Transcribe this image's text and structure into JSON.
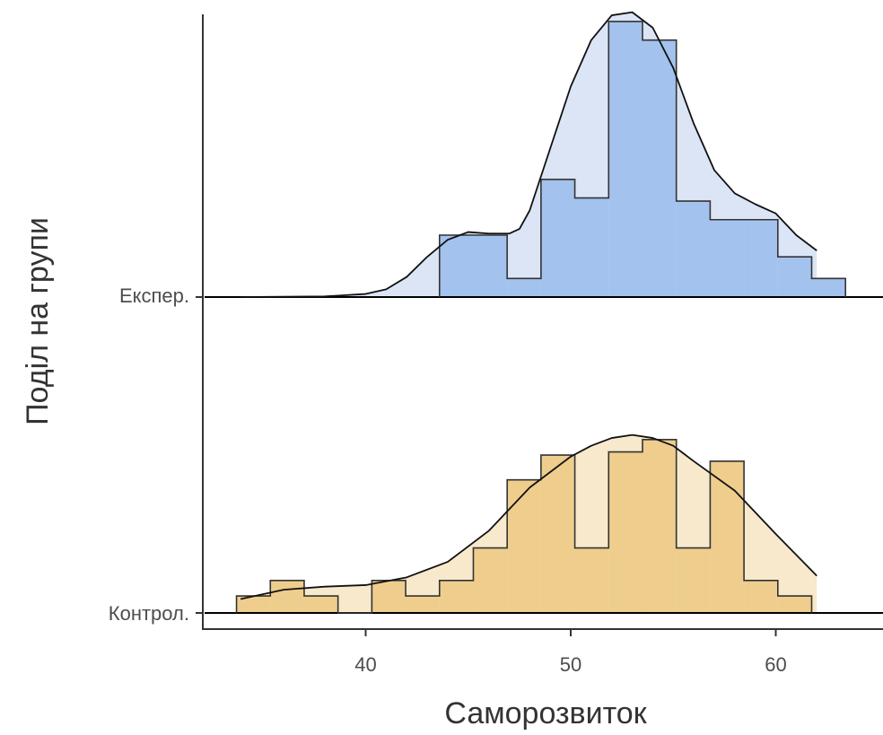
{
  "chart_data": {
    "type": "ridgeline-histogram",
    "xlabel": "Саморозвиток",
    "ylabel": "Поділ на групи",
    "xticks": [
      40,
      50,
      60
    ],
    "xlim": [
      32.5,
      65.5
    ],
    "bin_width": 1.65,
    "groups": [
      {
        "label": "Експер.",
        "colors": {
          "bar": "#a4c2ee",
          "density": "#dbe5f5"
        },
        "histogram": {
          "bin_start": 43.6,
          "counts": [
            2,
            2,
            0.6,
            3.8,
            3.2,
            8.9,
            8.3,
            3.1,
            2.5,
            2.5,
            1.3,
            0.6
          ]
        },
        "density": {
          "x": [
            33.9,
            38,
            40,
            41,
            42,
            43,
            44,
            45,
            46,
            47,
            47.5,
            48,
            49,
            50,
            51,
            52,
            53,
            54,
            55,
            56,
            57,
            58,
            59,
            60,
            61,
            62
          ],
          "y": [
            0,
            0.02,
            0.1,
            0.25,
            0.65,
            1.3,
            1.85,
            2.1,
            2.05,
            2.05,
            2.2,
            2.8,
            4.8,
            6.8,
            8.3,
            9.1,
            9.2,
            8.7,
            7.4,
            5.6,
            4.1,
            3.35,
            3.0,
            2.7,
            2.0,
            1.5
          ]
        }
      },
      {
        "label": "Контрол.",
        "colors": {
          "bar": "#efcd8d",
          "density": "#f8e9cd"
        },
        "histogram": {
          "bin_start": 33.7,
          "counts": [
            0.55,
            1.05,
            0.55,
            0,
            1.05,
            0.55,
            1.05,
            2.1,
            4.3,
            5.1,
            2.1,
            5.2,
            5.6,
            2.1,
            4.9,
            1.05,
            0.55
          ]
        },
        "density": {
          "x": [
            33.9,
            36,
            38,
            40,
            42,
            44,
            46,
            48,
            50,
            51,
            52,
            53,
            54,
            55,
            56,
            58,
            60,
            62
          ],
          "y": [
            0.45,
            0.75,
            0.85,
            0.9,
            1.15,
            1.65,
            2.65,
            4.05,
            5.05,
            5.4,
            5.65,
            5.75,
            5.65,
            5.4,
            4.9,
            3.95,
            2.55,
            1.2
          ]
        }
      }
    ]
  }
}
